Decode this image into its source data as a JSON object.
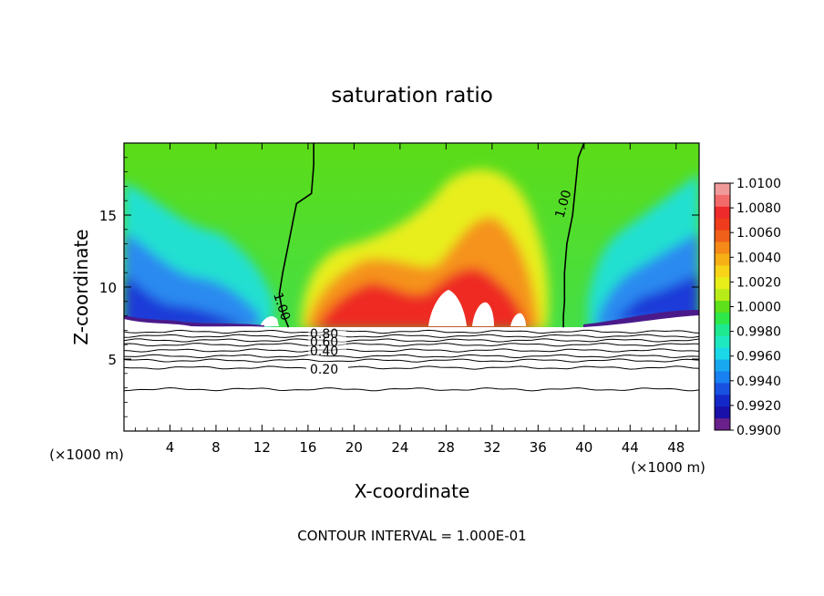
{
  "chart_data": {
    "type": "heatmap",
    "title": "saturation ratio",
    "xlabel": "X-coordinate",
    "ylabel": "Z-coordinate",
    "x_unit_left": "(×1000 m)",
    "x_unit_right": "(×1000 m)",
    "xlim": [
      0,
      50
    ],
    "ylim": [
      0,
      20
    ],
    "x_ticks": [
      4,
      8,
      12,
      16,
      20,
      24,
      28,
      32,
      36,
      40,
      44,
      48
    ],
    "y_ticks": [
      5,
      10,
      15
    ],
    "colorbar": {
      "ticks": [
        "1.0100",
        "1.0080",
        "1.0060",
        "1.0040",
        "1.0020",
        "1.0000",
        "0.9980",
        "0.9960",
        "0.9940",
        "0.9920",
        "0.9900"
      ],
      "levels": [
        1.01,
        1.009,
        1.008,
        1.007,
        1.006,
        1.005,
        1.004,
        1.003,
        1.002,
        1.001,
        1.0,
        0.999,
        0.998,
        0.997,
        0.996,
        0.995,
        0.994,
        0.993,
        0.992,
        0.991,
        0.99
      ],
      "colors": [
        "#f09a9a",
        "#f36a6a",
        "#ee2a2a",
        "#ee3c1c",
        "#f0601a",
        "#f58a18",
        "#f7b016",
        "#f7d418",
        "#e8ee1a",
        "#b8ec18",
        "#5ee01a",
        "#2ee84a",
        "#1ee890",
        "#1ee8c0",
        "#1ad8e8",
        "#18a8f0",
        "#1880f0",
        "#1850e0",
        "#1428c8",
        "#1810a8",
        "#6a208a"
      ]
    },
    "contour_labels": [
      "0.80",
      "0.60",
      "0.40",
      "0.20",
      "1.00",
      "1.00"
    ],
    "contour_line_z": [
      6.9,
      6.6,
      6.3,
      6.0,
      5.6,
      5.2,
      4.9,
      4.4,
      2.9
    ],
    "contour_1_left": {
      "x": [
        16.5,
        16.5,
        16.3,
        15.0,
        14.3,
        13.8,
        13.5,
        13.8,
        14.3
      ],
      "z": [
        20,
        18.5,
        16.5,
        15.8,
        13.0,
        11.0,
        9.5,
        8.2,
        7.2
      ]
    },
    "contour_1_right": {
      "x": [
        40.0,
        39.5,
        39.0,
        38.5,
        38.3,
        38.3,
        38.2,
        38.2
      ],
      "z": [
        20,
        19.0,
        15.0,
        13.0,
        11.0,
        9.0,
        8.0,
        7.2
      ]
    },
    "annotation": "CONTOUR INTERVAL = 1.000E-01"
  }
}
